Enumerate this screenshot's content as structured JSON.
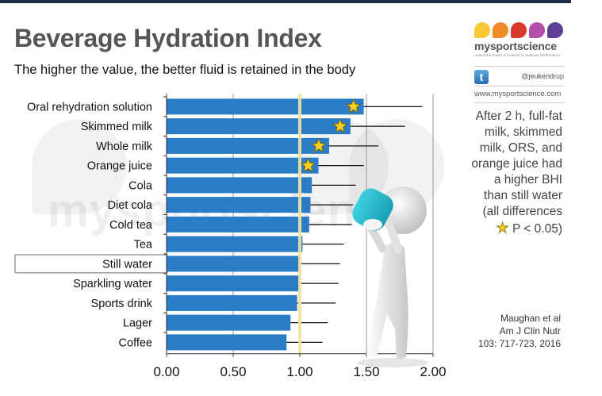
{
  "header": {
    "title": "Beverage Hydration Index",
    "subtitle": "The higher the value, the better fluid is retained in the body"
  },
  "watermark": "mysportscience",
  "logo": {
    "brand": "mysportscience",
    "tagline": "Unlock the Power of Science to Optimise Performance",
    "drop_colors": [
      "#f7c934",
      "#f08a2b",
      "#d93a2b",
      "#b44fa9",
      "#5e3f93"
    ],
    "twitter_icon": "twitter-icon",
    "twitter_handle": "@jeukendrup",
    "website": "www.mysportscience.com"
  },
  "note": {
    "lines": [
      "After 2 h, full-fat",
      "milk, skimmed",
      "milk, ORS, and",
      "orange juice had",
      "a higher BHI",
      "than still water",
      "(all differences"
    ],
    "star_icon": "star-icon",
    "star_text": "P < 0.05)"
  },
  "citation": {
    "lines": [
      "Maughan et al",
      "Am J Clin Nutr",
      "103: 717-723, 2016"
    ]
  },
  "figure_icon": "person-drinking-icon",
  "colors": {
    "bar": "#2b7cc6",
    "reference_line": "#f2e6a0",
    "star": "#f5d31f",
    "title": "#555555"
  },
  "chart_data": {
    "type": "bar",
    "orientation": "horizontal",
    "title": "Beverage Hydration Index",
    "xlabel": "",
    "ylabel": "",
    "xlim": [
      0,
      2.0
    ],
    "xticks": [
      "0.00",
      "0.50",
      "1.00",
      "1.50",
      "2.00"
    ],
    "xtick_values": [
      0,
      0.5,
      1.0,
      1.5,
      2.0
    ],
    "reference_value": 1.0,
    "highlighted_category": "Still water",
    "categories": [
      "Oral rehydration solution",
      "Skimmed milk",
      "Whole milk",
      "Orange juice",
      "Cola",
      "Diet cola",
      "Cold tea",
      "Tea",
      "Still water",
      "Sparkling water",
      "Sports drink",
      "Lager",
      "Coffee"
    ],
    "values": [
      1.48,
      1.38,
      1.22,
      1.14,
      1.09,
      1.08,
      1.07,
      1.02,
      1.0,
      1.0,
      0.98,
      0.93,
      0.9
    ],
    "error_upper": [
      1.92,
      1.79,
      1.59,
      1.48,
      1.42,
      1.4,
      1.39,
      1.33,
      1.3,
      1.29,
      1.27,
      1.21,
      1.17
    ],
    "significant": [
      true,
      true,
      true,
      true,
      false,
      false,
      false,
      false,
      false,
      false,
      false,
      false,
      false
    ],
    "grid": true,
    "legend": "none"
  }
}
